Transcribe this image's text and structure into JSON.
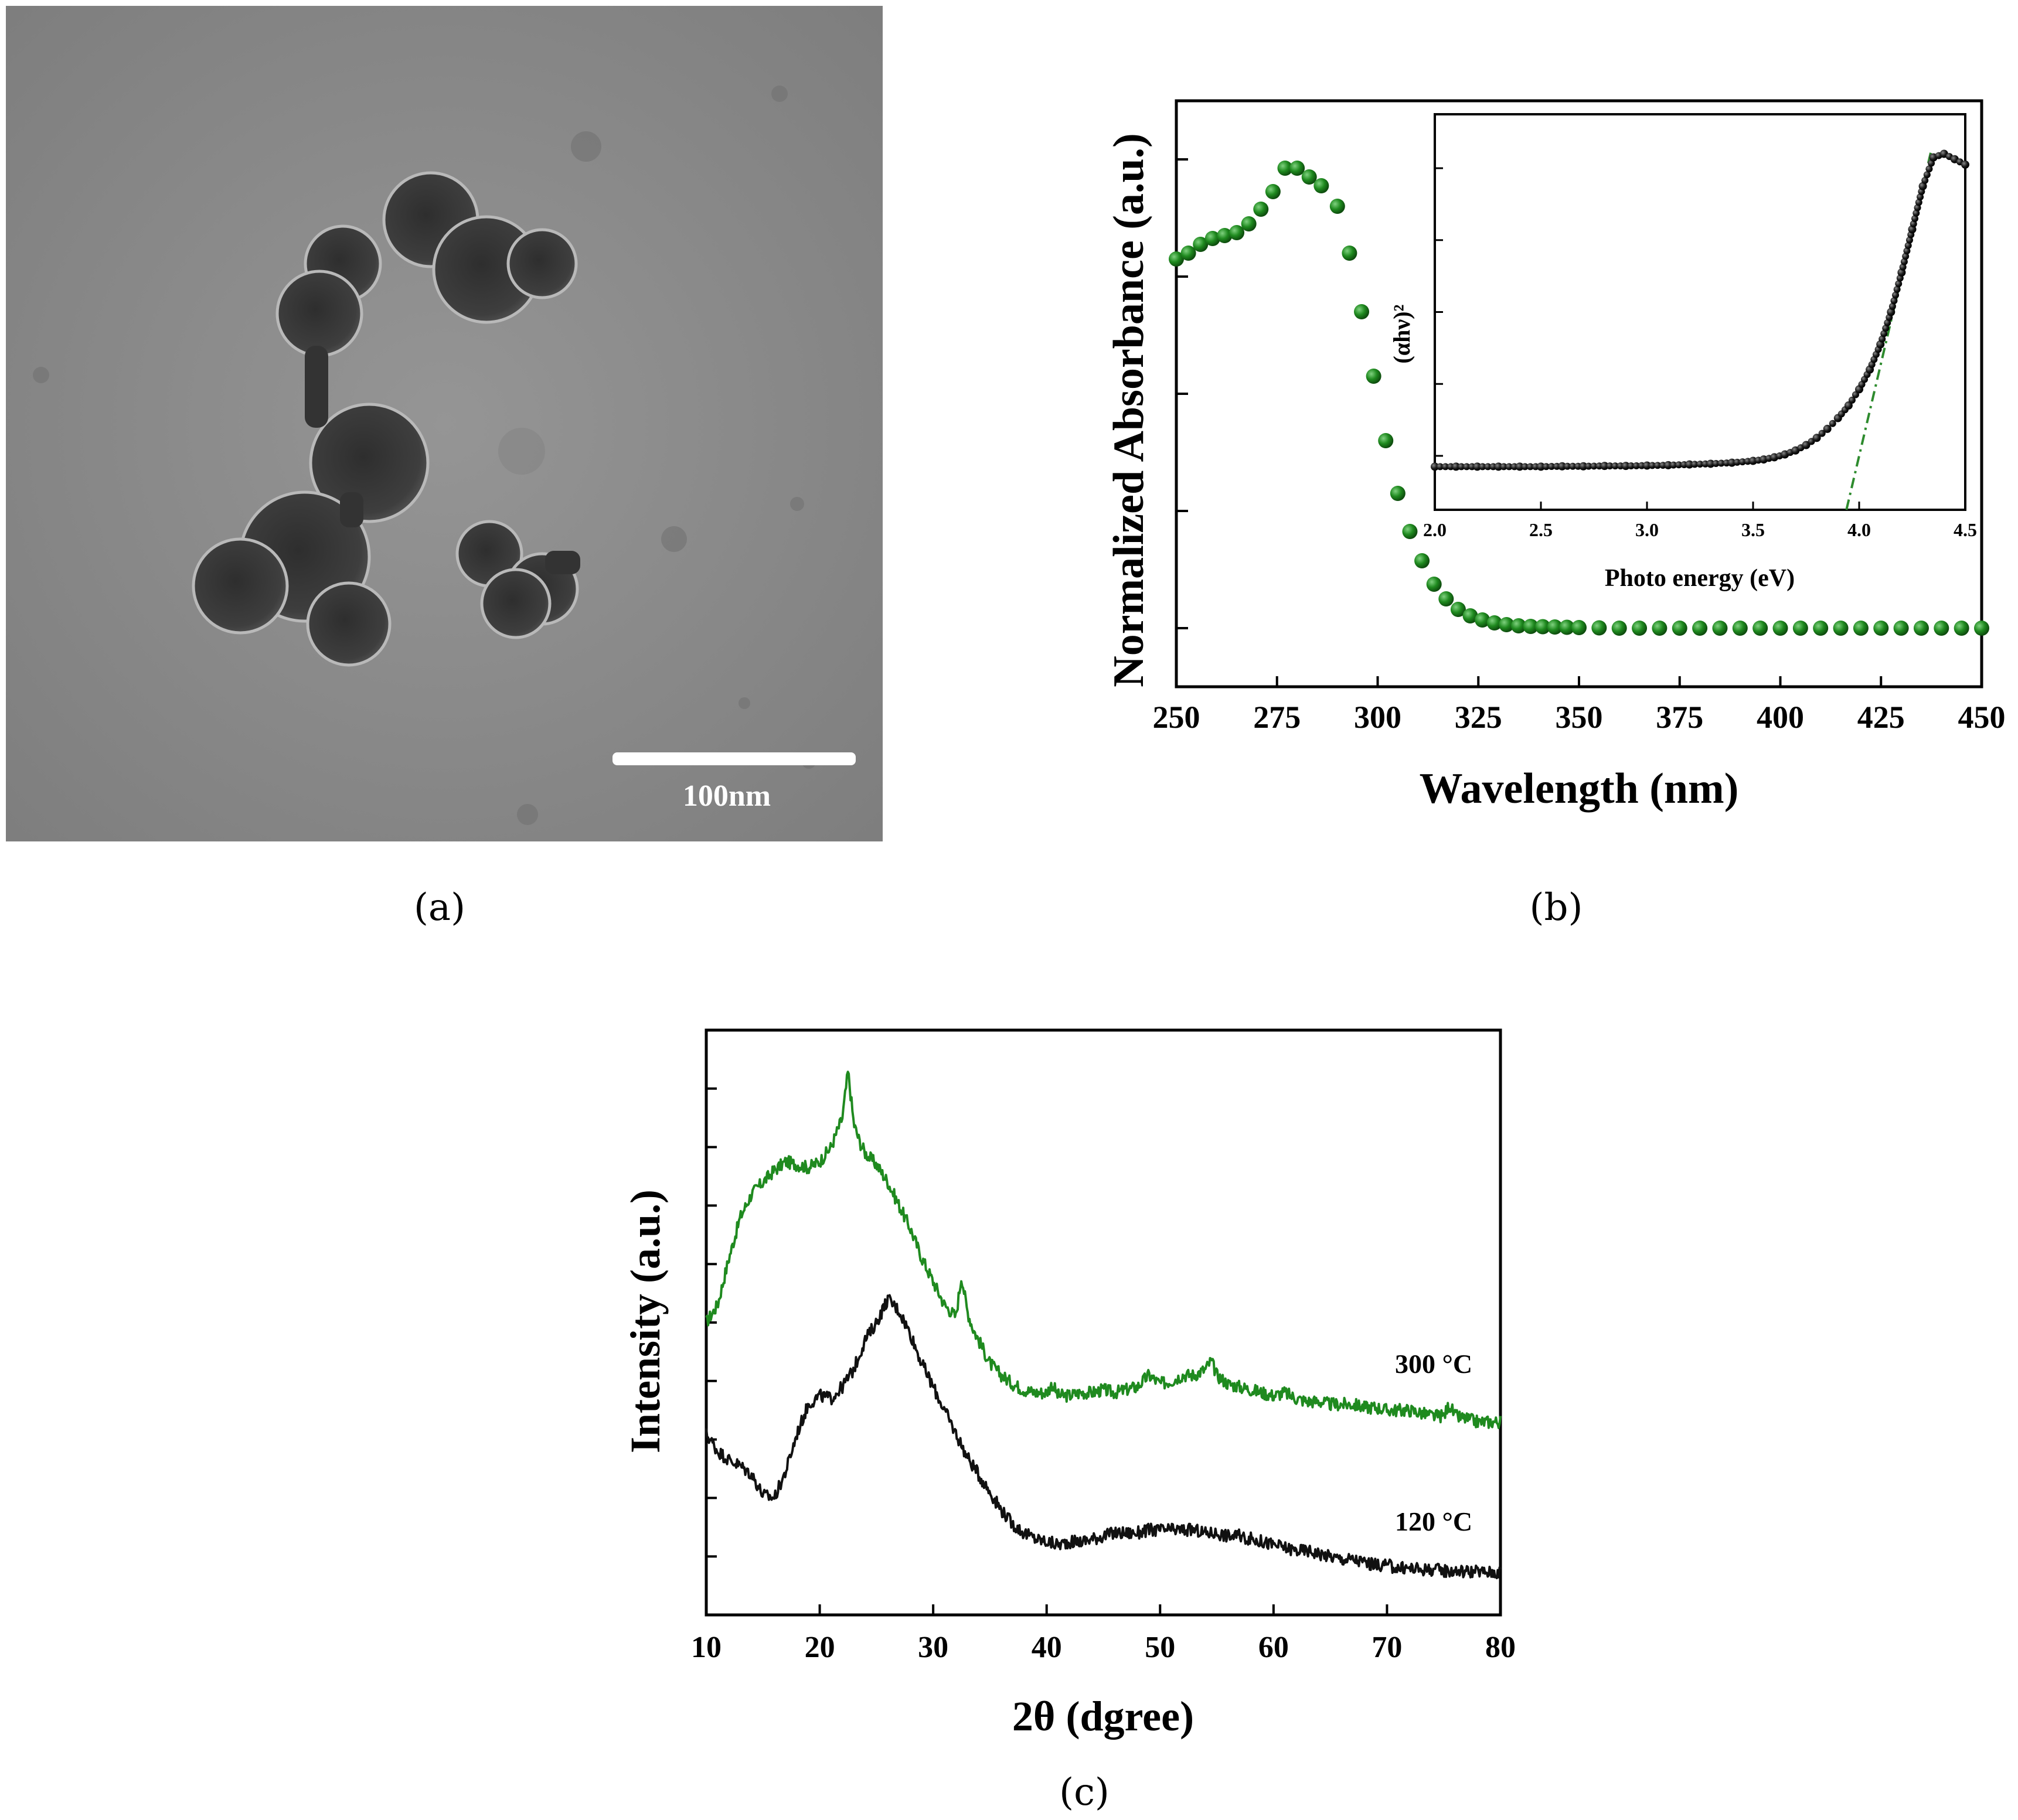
{
  "panels": [
    {
      "label": "(a)"
    },
    {
      "label": "(b)"
    },
    {
      "label": "(c)"
    }
  ],
  "tem": {
    "scale_bar_label": "100nm",
    "background_color": "#8c8c8c",
    "particle_color": "#3a3a3a"
  },
  "chart_data": [
    {
      "id": "b_main",
      "type": "scatter",
      "xlabel": "Wavelength (nm)",
      "ylabel": "Normalized Absorbance (a.u.)",
      "xlim": [
        250,
        450
      ],
      "x_ticks": [
        250,
        275,
        300,
        325,
        350,
        375,
        400,
        425,
        450
      ],
      "x_tick_labels": [
        "250",
        "275",
        "300",
        "325",
        "350",
        "375",
        "400",
        "425",
        "450"
      ],
      "y_ticks": [
        0.2,
        0.4,
        0.6,
        0.8,
        1.0
      ],
      "y_tick_labels": [
        "",
        "",
        "",
        "",
        ""
      ],
      "ylim": [
        0.1,
        1.1
      ],
      "color": "#1f7a1f",
      "series": [
        {
          "x": [
            250,
            253,
            256,
            259,
            262,
            265,
            268,
            271,
            274,
            277,
            280,
            283,
            286,
            290,
            293,
            296,
            299,
            302,
            305,
            308,
            311,
            314,
            317,
            320,
            323,
            326,
            329,
            332,
            335,
            338,
            341,
            344,
            347,
            350,
            355,
            360,
            365,
            370,
            375,
            380,
            385,
            390,
            395,
            400,
            405,
            410,
            415,
            420,
            425,
            430,
            435,
            440,
            445,
            450
          ],
          "y": [
            0.83,
            0.84,
            0.855,
            0.865,
            0.87,
            0.875,
            0.89,
            0.915,
            0.945,
            0.985,
            0.985,
            0.97,
            0.955,
            0.92,
            0.84,
            0.74,
            0.63,
            0.52,
            0.43,
            0.365,
            0.315,
            0.275,
            0.25,
            0.232,
            0.221,
            0.214,
            0.209,
            0.206,
            0.204,
            0.203,
            0.2025,
            0.202,
            0.2015,
            0.201,
            0.2005,
            0.2,
            0.2,
            0.2,
            0.2,
            0.2,
            0.2,
            0.2,
            0.2,
            0.2,
            0.2,
            0.2,
            0.2,
            0.2,
            0.2,
            0.2,
            0.2,
            0.2,
            0.2,
            0.2
          ]
        }
      ]
    },
    {
      "id": "b_inset",
      "type": "scatter",
      "xlabel": "Photo energy (eV)",
      "ylabel": "(αhν)²",
      "xlim": [
        2.0,
        4.5
      ],
      "x_ticks": [
        2.0,
        2.5,
        3.0,
        3.5,
        4.0,
        4.5
      ],
      "x_tick_labels": [
        "2.0",
        "2.5",
        "3.0",
        "3.5",
        "4.0",
        "4.5"
      ],
      "ylim": [
        0,
        1.1
      ],
      "y_ticks": [
        0.15,
        0.35,
        0.55,
        0.75,
        0.95
      ],
      "y_tick_labels": [
        "",
        "",
        "",
        "",
        ""
      ],
      "color": "#111111",
      "fit_color": "#2e8b2e",
      "series": [
        {
          "x": [
            2.0,
            2.1,
            2.2,
            2.3,
            2.4,
            2.5,
            2.6,
            2.7,
            2.8,
            2.9,
            3.0,
            3.1,
            3.2,
            3.3,
            3.4,
            3.5,
            3.55,
            3.6,
            3.65,
            3.7,
            3.75,
            3.8,
            3.85,
            3.9,
            3.95,
            4.0,
            4.05,
            4.1,
            4.15,
            4.2,
            4.25,
            4.3,
            4.35,
            4.4,
            4.45,
            4.5
          ],
          "y": [
            0.12,
            0.12,
            0.12,
            0.12,
            0.12,
            0.12,
            0.121,
            0.121,
            0.122,
            0.122,
            0.123,
            0.124,
            0.126,
            0.128,
            0.131,
            0.136,
            0.14,
            0.146,
            0.154,
            0.165,
            0.18,
            0.2,
            0.225,
            0.255,
            0.29,
            0.335,
            0.39,
            0.46,
            0.55,
            0.66,
            0.78,
            0.9,
            0.98,
            0.99,
            0.975,
            0.96
          ]
        }
      ],
      "fit_line": {
        "x": [
          3.94,
          4.34
        ],
        "y": [
          0.0,
          1.0
        ]
      }
    },
    {
      "id": "c",
      "type": "line",
      "xlabel": "2θ (dgree)",
      "ylabel": "Intensity (a.u.)",
      "xlim": [
        10,
        80
      ],
      "x_ticks": [
        10,
        20,
        30,
        40,
        50,
        60,
        70,
        80
      ],
      "x_tick_labels": [
        "10",
        "20",
        "30",
        "40",
        "50",
        "60",
        "70",
        "80"
      ],
      "ylim": [
        0,
        1
      ],
      "y_ticks": [
        0.1,
        0.2,
        0.3,
        0.4,
        0.5,
        0.6,
        0.7,
        0.8,
        0.9
      ],
      "y_tick_labels": [
        "",
        "",
        "",
        "",
        "",
        "",
        "",
        "",
        ""
      ],
      "series": [
        {
          "name": "300 °C",
          "color": "#1f8a1f",
          "x": [
            10,
            11,
            12,
            13,
            14,
            15,
            16,
            17,
            18,
            19,
            20,
            21,
            22,
            22.5,
            23,
            23.5,
            24,
            25,
            26,
            27,
            28,
            29,
            30,
            31,
            32,
            32.5,
            33,
            33.5,
            34,
            35,
            36,
            37,
            38,
            39,
            40,
            40.5,
            41,
            42,
            43,
            44,
            45,
            46,
            47,
            48,
            49,
            50,
            51,
            52,
            53,
            54,
            54.5,
            55,
            56,
            57,
            58,
            59,
            60,
            61,
            62,
            63,
            64,
            65,
            66,
            67,
            68,
            69,
            70,
            71,
            72,
            73,
            74,
            75,
            75.5,
            76,
            77,
            78,
            79,
            80
          ],
          "y": [
            0.5,
            0.53,
            0.61,
            0.68,
            0.72,
            0.74,
            0.76,
            0.775,
            0.77,
            0.765,
            0.775,
            0.8,
            0.85,
            0.93,
            0.84,
            0.81,
            0.79,
            0.77,
            0.74,
            0.7,
            0.66,
            0.61,
            0.57,
            0.53,
            0.51,
            0.58,
            0.52,
            0.49,
            0.47,
            0.43,
            0.41,
            0.395,
            0.385,
            0.38,
            0.38,
            0.395,
            0.375,
            0.375,
            0.38,
            0.38,
            0.385,
            0.38,
            0.385,
            0.39,
            0.41,
            0.395,
            0.4,
            0.41,
            0.41,
            0.42,
            0.435,
            0.41,
            0.395,
            0.39,
            0.385,
            0.38,
            0.375,
            0.38,
            0.37,
            0.365,
            0.365,
            0.36,
            0.36,
            0.36,
            0.355,
            0.355,
            0.35,
            0.35,
            0.35,
            0.345,
            0.34,
            0.34,
            0.36,
            0.34,
            0.335,
            0.33,
            0.33,
            0.33
          ]
        },
        {
          "name": "120 °C",
          "color": "#111111",
          "x": [
            10,
            11,
            12,
            13,
            14,
            15,
            16,
            17,
            18,
            19,
            20,
            21,
            22,
            23,
            24,
            25,
            26,
            27,
            28,
            29,
            30,
            31,
            32,
            33,
            34,
            35,
            36,
            37,
            38,
            39,
            40,
            41,
            42,
            43,
            44,
            45,
            46,
            47,
            48,
            49,
            50,
            51,
            52,
            53,
            54,
            55,
            56,
            57,
            58,
            59,
            60,
            61,
            62,
            63,
            64,
            65,
            66,
            67,
            68,
            69,
            70,
            71,
            72,
            73,
            74,
            75,
            76,
            77,
            78,
            79,
            80
          ],
          "y": [
            0.31,
            0.28,
            0.265,
            0.255,
            0.24,
            0.205,
            0.2,
            0.245,
            0.31,
            0.36,
            0.375,
            0.37,
            0.39,
            0.42,
            0.47,
            0.5,
            0.54,
            0.52,
            0.48,
            0.43,
            0.39,
            0.35,
            0.31,
            0.27,
            0.24,
            0.21,
            0.18,
            0.155,
            0.14,
            0.13,
            0.125,
            0.12,
            0.125,
            0.125,
            0.13,
            0.135,
            0.14,
            0.14,
            0.14,
            0.145,
            0.145,
            0.145,
            0.145,
            0.145,
            0.14,
            0.14,
            0.135,
            0.135,
            0.13,
            0.125,
            0.12,
            0.115,
            0.11,
            0.11,
            0.105,
            0.1,
            0.095,
            0.095,
            0.09,
            0.085,
            0.085,
            0.08,
            0.08,
            0.078,
            0.078,
            0.076,
            0.075,
            0.075,
            0.074,
            0.073,
            0.073
          ]
        }
      ]
    }
  ]
}
